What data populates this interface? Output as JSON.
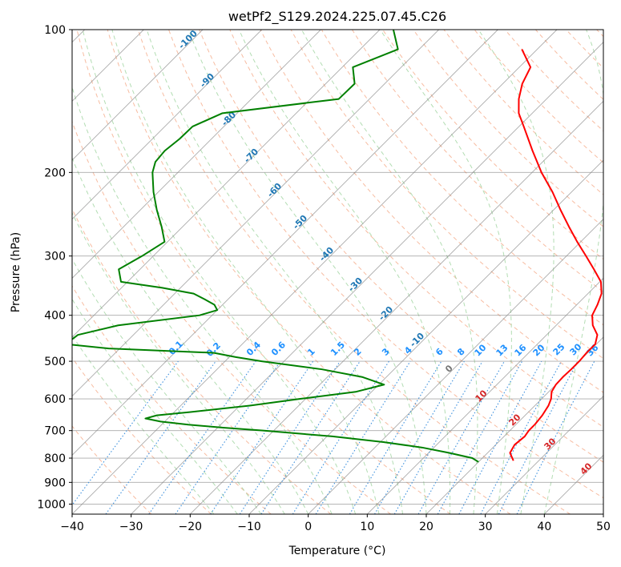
{
  "chart_data": {
    "type": "line",
    "title": "wetPf2_S129.2024.225.07.45.C26",
    "xlabel": "Temperature (°C)",
    "ylabel": "Pressure (hPa)",
    "xlim": [
      -40,
      50
    ],
    "ylim": [
      1050,
      100
    ],
    "y_scale": "log",
    "x_ticks": [
      "−40",
      "−30",
      "−20",
      "−10",
      "0",
      "10",
      "20",
      "30",
      "40",
      "50"
    ],
    "y_ticks": [
      1000,
      900,
      800,
      700,
      600,
      500,
      400,
      300,
      200,
      100
    ],
    "grid": true,
    "colors": {
      "temperature": "#ff0000",
      "dewpoint": "#008000",
      "isotherm": "#888888",
      "dry_adiabat": "#f4a582",
      "moist_adiabat": "#a6d7a6",
      "mixing_ratio": "#3b8fdd",
      "dry_adiabat_label": "#d62728",
      "moist_adiabat_label": "#1f77b4",
      "mixing_ratio_label": "#1e90ff"
    },
    "series": [
      {
        "key": "temperature",
        "pressure": [
          810,
          780,
          750,
          720,
          700,
          680,
          650,
          620,
          600,
          580,
          560,
          540,
          520,
          500,
          480,
          460,
          440,
          420,
          400,
          380,
          360,
          340,
          320,
          300,
          280,
          260,
          240,
          220,
          200,
          180,
          160,
          150,
          140,
          130,
          120,
          110
        ],
        "values": [
          25.7,
          23.8,
          23.2,
          23.5,
          23.2,
          23.2,
          22.9,
          22.3,
          21.6,
          20.5,
          20.0,
          19.9,
          20.0,
          20.0,
          19.8,
          19.8,
          18.6,
          16.2,
          14.4,
          13.5,
          12.3,
          10.2,
          6.9,
          3.3,
          -0.6,
          -4.6,
          -8.8,
          -13.2,
          -18.4,
          -23.6,
          -29.2,
          -32.3,
          -34.7,
          -36.7,
          -38.1,
          -42.6
        ]
      },
      {
        "key": "dewpoint",
        "pressure": [
          815,
          800,
          780,
          760,
          740,
          720,
          700,
          690,
          680,
          670,
          660,
          650,
          640,
          620,
          600,
          580,
          560,
          540,
          520,
          500,
          490,
          480,
          470,
          460,
          440,
          420,
          400,
          390,
          380,
          370,
          360,
          350,
          340,
          320,
          300,
          280,
          260,
          240,
          220,
          200,
          190,
          180,
          170,
          160,
          150,
          140,
          130,
          120,
          110,
          100
        ],
        "values": [
          20.0,
          18.3,
          13.5,
          8.0,
          0.5,
          -9.1,
          -21.8,
          -29.1,
          -35.5,
          -40.7,
          -43.8,
          -42.4,
          -37.4,
          -28.3,
          -20.9,
          -12.7,
          -9.1,
          -14.0,
          -22.2,
          -33.8,
          -38.9,
          -43.3,
          -61.9,
          -69.9,
          -69.4,
          -64.2,
          -52.1,
          -50.0,
          -51.4,
          -54.0,
          -56.8,
          -63.1,
          -71.1,
          -73.6,
          -71.9,
          -70.5,
          -73.6,
          -77.2,
          -80.8,
          -84.3,
          -85.6,
          -85.9,
          -85.4,
          -85.3,
          -82.5,
          -65.2,
          -65.1,
          -68.2,
          -63.6,
          -67.7
        ]
      }
    ],
    "dry_adiabat_labels": [
      "10",
      "20",
      "30",
      "40"
    ],
    "moist_adiabat_labels": [
      "0",
      "-10",
      "-20",
      "-30",
      "-40",
      "-50",
      "-60",
      "-70",
      "-80",
      "-90",
      "-100"
    ],
    "mixing_ratio_labels": [
      "0.1",
      "0.2",
      "0.4",
      "0.6",
      "1",
      "1.5",
      "2",
      "3",
      "4",
      "6",
      "8",
      "10",
      "13",
      "16",
      "20",
      "25",
      "30",
      "36"
    ]
  }
}
